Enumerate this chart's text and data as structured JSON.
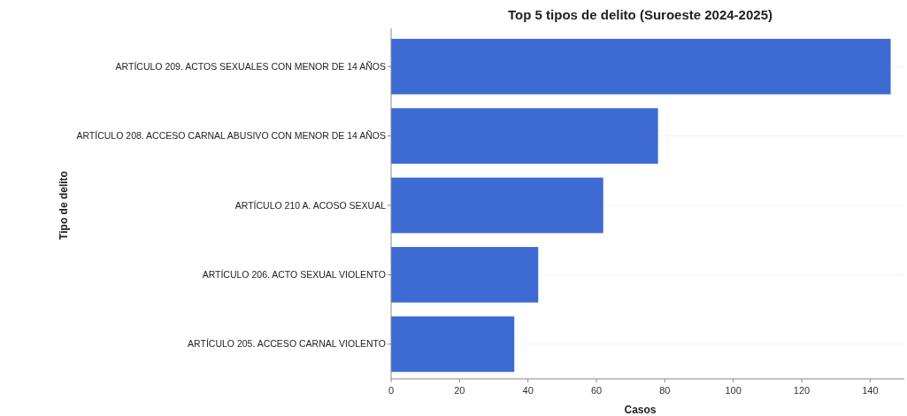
{
  "chart_data": {
    "type": "bar",
    "orientation": "horizontal",
    "title": "Top 5 tipos de delito (Suroeste 2024-2025)",
    "xlabel": "Casos",
    "ylabel": "Tipo de delito",
    "categories": [
      "ARTÍCULO 209. ACTOS SEXUALES CON MENOR DE 14 AÑOS",
      "ARTÍCULO 208. ACCESO CARNAL ABUSIVO CON MENOR DE 14 AÑOS",
      "ARTÍCULO 210 A. ACOSO SEXUAL",
      "ARTÍCULO 206. ACTO SEXUAL VIOLENTO",
      "ARTÍCULO 205. ACCESO CARNAL VIOLENTO"
    ],
    "values": [
      146,
      78,
      62,
      43,
      36
    ],
    "color": "#3d6bd3",
    "xlim": [
      0,
      150
    ],
    "xticks": [
      0,
      20,
      40,
      60,
      80,
      100,
      120,
      140
    ],
    "grid": "y"
  }
}
